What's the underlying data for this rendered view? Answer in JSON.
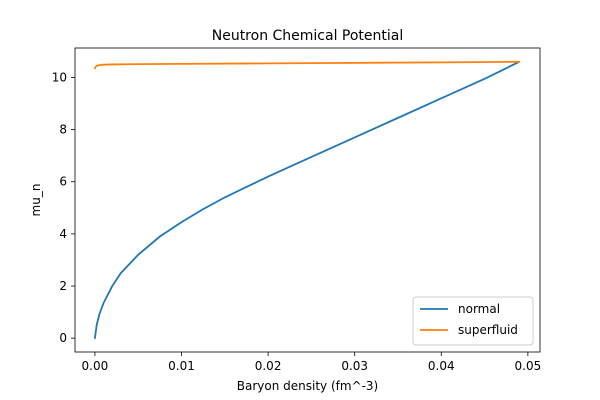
{
  "chart_data": {
    "type": "line",
    "title": "Neutron Chemical Potential",
    "xlabel": "Baryon density (fm^-3)",
    "ylabel": "mu_n",
    "xlim": [
      -0.0023,
      0.0514
    ],
    "ylim": [
      -0.53,
      11.13
    ],
    "xticks": [
      0.0,
      0.01,
      0.02,
      0.03,
      0.04,
      0.05
    ],
    "xtick_labels": [
      "0.00",
      "0.01",
      "0.02",
      "0.03",
      "0.04",
      "0.05"
    ],
    "yticks": [
      0,
      2,
      4,
      6,
      8,
      10
    ],
    "ytick_labels": [
      "0",
      "2",
      "4",
      "6",
      "8",
      "10"
    ],
    "grid": false,
    "legend_position": "lower-right",
    "series": [
      {
        "name": "normal",
        "color": "#1f77b4",
        "x": [
          0.0,
          0.0002,
          0.0005,
          0.001,
          0.002,
          0.003,
          0.005,
          0.0075,
          0.01,
          0.0125,
          0.015,
          0.0175,
          0.02,
          0.025,
          0.03,
          0.035,
          0.04,
          0.045,
          0.049
        ],
        "y": [
          0.0,
          0.5,
          0.9,
          1.35,
          2.0,
          2.5,
          3.2,
          3.9,
          4.45,
          4.95,
          5.4,
          5.8,
          6.2,
          6.95,
          7.7,
          8.45,
          9.2,
          9.95,
          10.6
        ]
      },
      {
        "name": "superfluid",
        "color": "#ff7f0e",
        "x": [
          0.0,
          0.0001,
          0.0003,
          0.0006,
          0.001,
          0.002,
          0.005,
          0.01,
          0.02,
          0.03,
          0.04,
          0.049
        ],
        "y": [
          10.35,
          10.42,
          10.46,
          10.48,
          10.49,
          10.5,
          10.51,
          10.52,
          10.54,
          10.56,
          10.58,
          10.6
        ]
      }
    ]
  }
}
